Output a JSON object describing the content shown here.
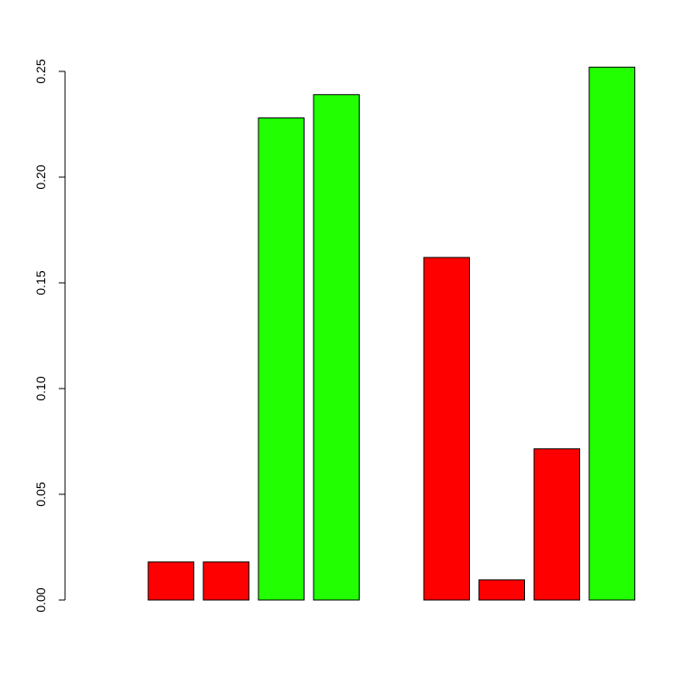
{
  "chart_data": {
    "type": "bar",
    "title": "",
    "xlabel": "",
    "ylabel": "",
    "ylim": [
      0,
      0.25
    ],
    "y_ticks": [
      "0.00",
      "0.05",
      "0.10",
      "0.15",
      "0.20",
      "0.25"
    ],
    "grid": false,
    "legend": "none",
    "values": [
      0.0,
      0.018,
      0.018,
      0.228,
      0.239,
      0.0,
      0.162,
      0.0095,
      0.0715,
      0.252
    ],
    "bar_colors": [
      "#FF0000",
      "#FF0000",
      "#FF0000",
      "#22FF00",
      "#22FF00",
      "#FF0000",
      "#FF0000",
      "#FF0000",
      "#FF0000",
      "#22FF00"
    ],
    "colors": {
      "red": "#FF0000",
      "green": "#22FF00",
      "border": "#000000"
    }
  }
}
